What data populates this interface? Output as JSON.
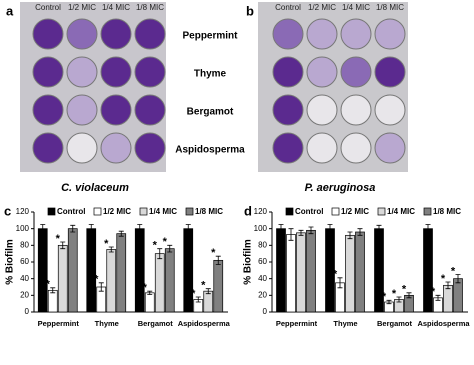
{
  "photos": {
    "a": {
      "panel_label": "a",
      "columns": [
        "Control",
        "1/2 MIC",
        "1/4 MIC",
        "1/8 MIC"
      ],
      "organism": "C. violaceum"
    },
    "b": {
      "panel_label": "b",
      "columns": [
        "Control",
        "1/2 MIC",
        "1/4 MIC",
        "1/8 MIC"
      ],
      "organism": "P. aeruginosa"
    },
    "row_labels": [
      "Peppermint",
      "Thyme",
      "Bergamot",
      "Aspidosperma"
    ]
  },
  "chart_data": [
    {
      "type": "bar",
      "panel_label": "c",
      "ylabel": "% Biofilm",
      "categories": [
        "Peppermint",
        "Thyme",
        "Bergamot",
        "Aspidosperma"
      ],
      "ylim": [
        0,
        120
      ],
      "yticks": [
        0,
        20,
        40,
        60,
        80,
        100,
        120
      ],
      "series": [
        {
          "name": "Control",
          "color": "#000000",
          "values": [
            100,
            100,
            100,
            100
          ],
          "errors": [
            5,
            5,
            5,
            5
          ]
        },
        {
          "name": "1/2 MIC",
          "color": "#ffffff",
          "values": [
            26,
            30,
            23,
            15
          ],
          "errors": [
            3,
            5,
            2,
            3
          ],
          "significance": [
            "*",
            "*",
            "*",
            "*"
          ]
        },
        {
          "name": "1/4 MIC",
          "color": "#d9d9d9",
          "values": [
            80,
            75,
            70,
            25
          ],
          "errors": [
            4,
            3,
            6,
            3
          ],
          "significance": [
            "*",
            "*",
            "*",
            "*"
          ]
        },
        {
          "name": "1/8 MIC",
          "color": "#808080",
          "values": [
            100,
            94,
            76,
            62
          ],
          "errors": [
            4,
            3,
            4,
            5
          ],
          "significance": [
            null,
            null,
            "*",
            "*"
          ]
        }
      ]
    },
    {
      "type": "bar",
      "panel_label": "d",
      "ylabel": "% Biofilm",
      "categories": [
        "Peppermint",
        "Thyme",
        "Bergamot",
        "Aspidosperma"
      ],
      "ylim": [
        0,
        120
      ],
      "yticks": [
        0,
        20,
        40,
        60,
        80,
        100,
        120
      ],
      "series": [
        {
          "name": "Control",
          "color": "#000000",
          "values": [
            100,
            100,
            100,
            100
          ],
          "errors": [
            5,
            5,
            4,
            5
          ]
        },
        {
          "name": "1/2 MIC",
          "color": "#ffffff",
          "values": [
            93,
            35,
            12,
            17
          ],
          "errors": [
            7,
            6,
            2,
            3
          ],
          "significance": [
            null,
            "*",
            "*",
            "*"
          ]
        },
        {
          "name": "1/4 MIC",
          "color": "#d9d9d9",
          "values": [
            95,
            92,
            15,
            32
          ],
          "errors": [
            3,
            4,
            3,
            4
          ],
          "significance": [
            null,
            null,
            "*",
            "*"
          ]
        },
        {
          "name": "1/8 MIC",
          "color": "#808080",
          "values": [
            98,
            96,
            20,
            40
          ],
          "errors": [
            4,
            4,
            3,
            5
          ],
          "significance": [
            null,
            null,
            "*",
            "*"
          ]
        }
      ]
    }
  ]
}
